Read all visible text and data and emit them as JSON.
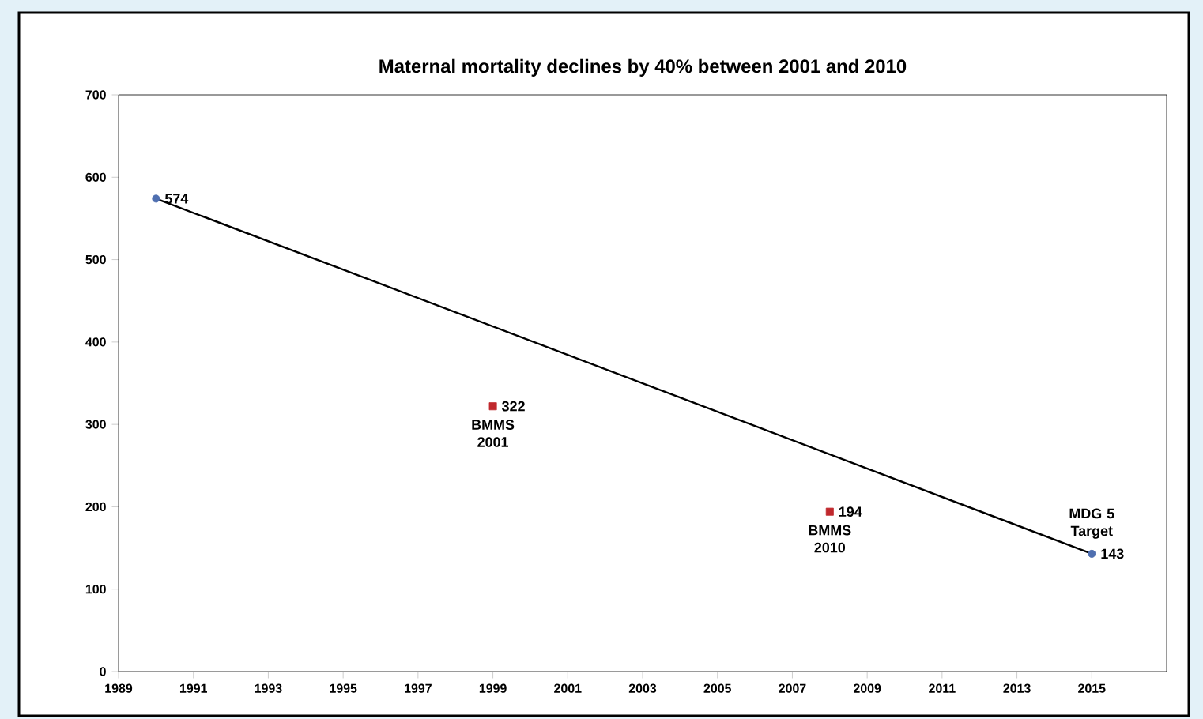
{
  "chart_data": {
    "type": "scatter",
    "title": "Maternal mortality declines by 40% between 2001 and 2010",
    "xlim": [
      1989,
      2017
    ],
    "xticks": [
      1989,
      1991,
      1993,
      1995,
      1997,
      1999,
      2001,
      2003,
      2005,
      2007,
      2009,
      2011,
      2013,
      2015
    ],
    "ylim": [
      0,
      700
    ],
    "yticks": [
      0,
      100,
      200,
      300,
      400,
      500,
      600,
      700
    ],
    "grid": false,
    "series": [
      {
        "type": "line",
        "color": "#000000",
        "x": [
          1990,
          2015
        ],
        "values": [
          574,
          143
        ],
        "marker": "none"
      },
      {
        "color": "#4f6fb0",
        "x": [
          1990,
          2015
        ],
        "values": [
          574,
          143
        ],
        "marker": "circle",
        "value_labels": [
          "574",
          "143"
        ]
      },
      {
        "color": "#c0282d",
        "x": [
          1999,
          2008
        ],
        "values": [
          322,
          194
        ],
        "marker": "square",
        "value_labels": [
          "322",
          "194"
        ]
      }
    ],
    "annotations": [
      {
        "text": "BMMS 2001",
        "x": 1999,
        "y": 322
      },
      {
        "text": "BMMS 2010",
        "x": 2008,
        "y": 194
      },
      {
        "text": "MDG 5 Target",
        "x": 2015,
        "y": 143
      }
    ]
  }
}
